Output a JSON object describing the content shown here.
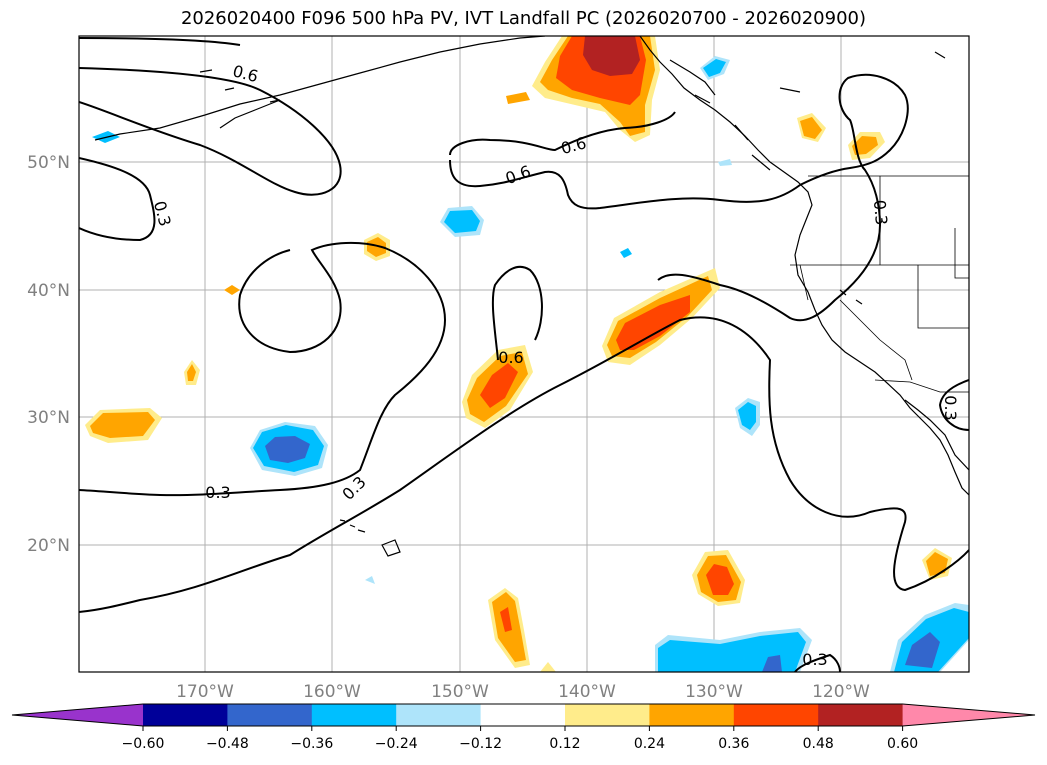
{
  "title": "2026020400 F096 500 hPa PV, IVT Landfall PC (2026020700 - 2026020900)",
  "map": {
    "lon_labels": [
      "170°W",
      "160°W",
      "150°W",
      "140°W",
      "130°W",
      "120°W"
    ],
    "lat_labels": [
      "50°N",
      "40°N",
      "30°N",
      "20°N"
    ],
    "contour_labels": [
      "0.6",
      "0.3",
      "0.6",
      "0.6",
      "0.3",
      "0.6",
      "0.3",
      "0.3",
      "0.3",
      "0.3"
    ]
  },
  "colorbar": {
    "ticks": [
      "−0.60",
      "−0.48",
      "−0.36",
      "−0.24",
      "−0.12",
      "0.12",
      "0.24",
      "0.36",
      "0.48",
      "0.60"
    ],
    "colors": [
      "#9933cc",
      "#000099",
      "#3366cc",
      "#00bfff",
      "#aee4fa",
      "#ffffff",
      "#ffec8b",
      "#ffa500",
      "#ff4500",
      "#b22222",
      "#ff88aa"
    ]
  }
}
